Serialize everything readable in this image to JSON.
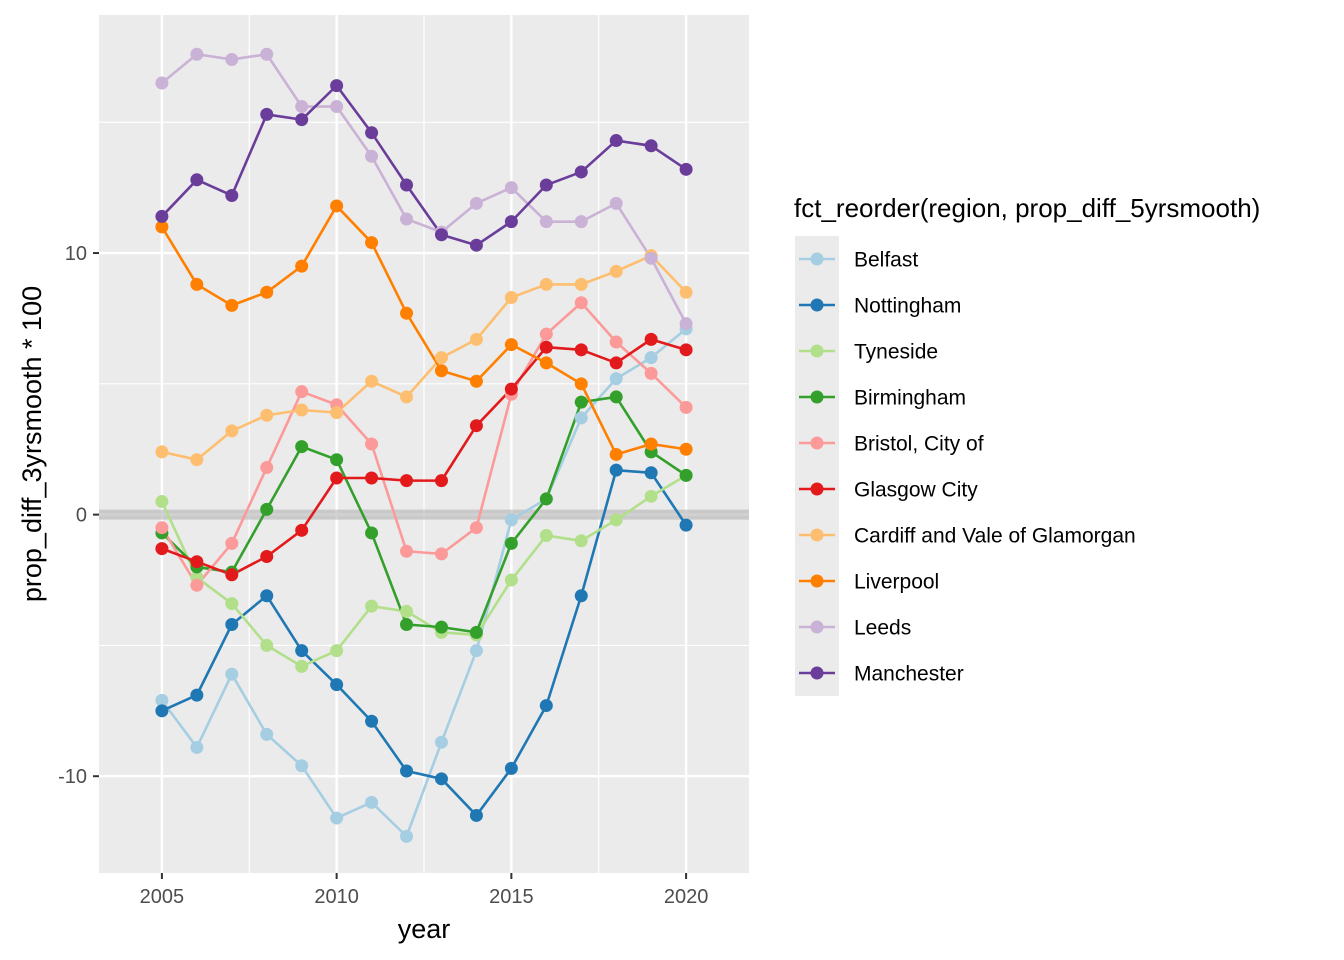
{
  "chart_data": {
    "type": "line",
    "xlabel": "year",
    "ylabel": "prop_diff_3yrsmooth * 100",
    "legend_title": "fct_reorder(region, prop_diff_5yrsmooth)",
    "legend_position": "right",
    "grid": true,
    "xlim": [
      2003.2,
      2021.8
    ],
    "ylim": [
      -13.7,
      19.1
    ],
    "x_ticks": [
      2005,
      2010,
      2015,
      2020
    ],
    "x_tick_labels": [
      "2005",
      "2010",
      "2015",
      "2020"
    ],
    "y_ticks": [
      -10,
      0,
      10
    ],
    "y_tick_labels": [
      "-10",
      "0",
      "10"
    ],
    "reference_line": {
      "y": 0,
      "color": "#b3b3b3"
    },
    "x": [
      2005,
      2006,
      2007,
      2008,
      2009,
      2010,
      2011,
      2012,
      2013,
      2014,
      2015,
      2016,
      2017,
      2018,
      2019,
      2020
    ],
    "series": [
      {
        "name": "Belfast",
        "color": "#a6cee3",
        "values": [
          -7.1,
          -8.9,
          -6.1,
          -8.4,
          -9.6,
          -11.6,
          -11.0,
          -12.3,
          -8.7,
          -5.2,
          -0.2,
          0.6,
          3.7,
          5.2,
          6.0,
          7.1
        ]
      },
      {
        "name": "Nottingham",
        "color": "#1f78b4",
        "values": [
          -7.5,
          -6.9,
          -4.2,
          -3.1,
          -5.2,
          -6.5,
          -7.9,
          -9.8,
          -10.1,
          -11.5,
          -9.7,
          -7.3,
          -3.1,
          1.7,
          1.6,
          -0.4
        ]
      },
      {
        "name": "Tyneside",
        "color": "#b2df8a",
        "values": [
          0.5,
          -2.4,
          -3.4,
          -5.0,
          -5.8,
          -5.2,
          -3.5,
          -3.7,
          -4.5,
          -4.6,
          -2.5,
          -0.8,
          -1.0,
          -0.2,
          0.7,
          1.5
        ]
      },
      {
        "name": "Birmingham",
        "color": "#33a02c",
        "values": [
          -0.7,
          -2.0,
          -2.2,
          0.2,
          2.6,
          2.1,
          -0.7,
          -4.2,
          -4.3,
          -4.5,
          -1.1,
          0.6,
          4.3,
          4.5,
          2.4,
          1.5
        ]
      },
      {
        "name": "Bristol, City of",
        "color": "#fb9a99",
        "values": [
          -0.5,
          -2.7,
          -1.1,
          1.8,
          4.7,
          4.2,
          2.7,
          -1.4,
          -1.5,
          -0.5,
          4.6,
          6.9,
          8.1,
          6.6,
          5.4,
          4.1
        ]
      },
      {
        "name": "Glasgow City",
        "color": "#e31a1c",
        "values": [
          -1.3,
          -1.8,
          -2.3,
          -1.6,
          -0.6,
          1.4,
          1.4,
          1.3,
          1.3,
          3.4,
          4.8,
          6.4,
          6.3,
          5.8,
          6.7,
          6.3
        ]
      },
      {
        "name": "Cardiff and Vale of Glamorgan",
        "color": "#fdbf6f",
        "values": [
          2.4,
          2.1,
          3.2,
          3.8,
          4.0,
          3.9,
          5.1,
          4.5,
          6.0,
          6.7,
          8.3,
          8.8,
          8.8,
          9.3,
          9.9,
          8.5
        ]
      },
      {
        "name": "Liverpool",
        "color": "#ff7f00",
        "values": [
          11.0,
          8.8,
          8.0,
          8.5,
          9.5,
          11.8,
          10.4,
          7.7,
          5.5,
          5.1,
          6.5,
          5.8,
          5.0,
          2.3,
          2.7,
          2.5
        ]
      },
      {
        "name": "Leeds",
        "color": "#cab2d6",
        "values": [
          16.5,
          17.6,
          17.4,
          17.6,
          15.6,
          15.6,
          13.7,
          11.3,
          10.8,
          11.9,
          12.5,
          11.2,
          11.2,
          11.9,
          9.8,
          7.3
        ]
      },
      {
        "name": "Manchester",
        "color": "#6a3d9a",
        "values": [
          11.4,
          12.8,
          12.2,
          15.3,
          15.1,
          16.4,
          14.6,
          12.6,
          10.7,
          10.3,
          11.2,
          12.6,
          13.1,
          14.3,
          14.1,
          13.2
        ]
      }
    ]
  }
}
